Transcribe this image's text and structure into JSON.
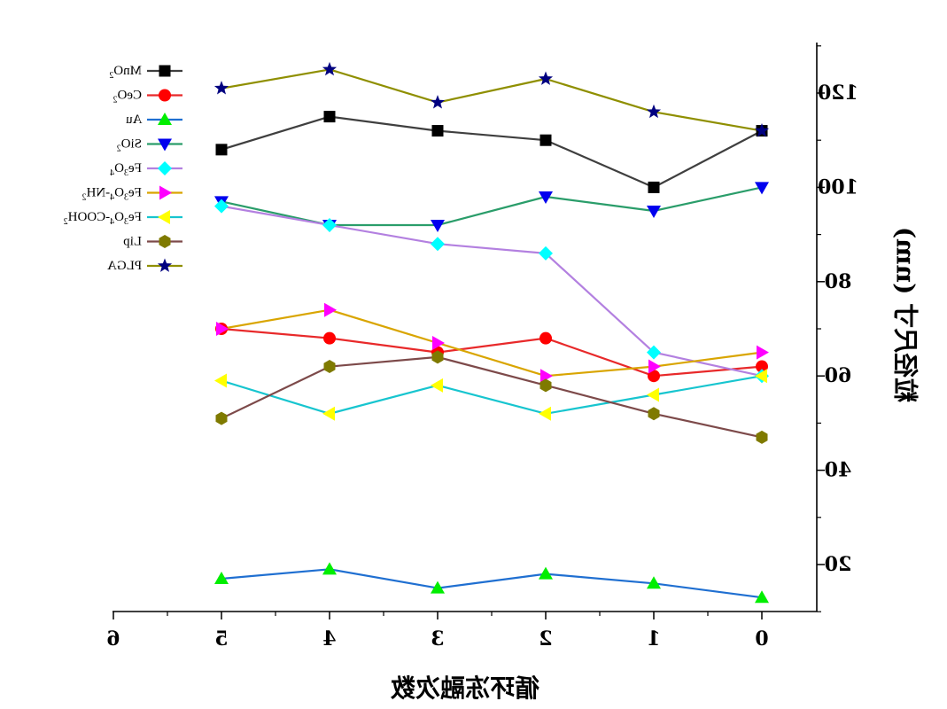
{
  "chart_data": {
    "type": "line",
    "xlabel": "循环冻融次数",
    "ylabel": "粒径尺寸 (nm)",
    "x": [
      0,
      1,
      2,
      3,
      4,
      5
    ],
    "xlim": [
      0,
      6
    ],
    "ylim": [
      10,
      130
    ],
    "x_ticks": [
      0,
      1,
      2,
      3,
      4,
      5,
      6
    ],
    "y_ticks": [
      20,
      40,
      60,
      80,
      100,
      120
    ],
    "x_reversed": true,
    "y_axis_side": "right",
    "mirrored_text": true,
    "grid": false,
    "legend_position": "top-left",
    "series": [
      {
        "name": "MnO2",
        "legend_parts": [
          [
            "MnO",
            ""
          ],
          [
            "2",
            "sub"
          ]
        ],
        "marker": "square",
        "line_color": "#3f3f3f",
        "marker_color": "#000000",
        "values": [
          112,
          100,
          110,
          112,
          115,
          108
        ]
      },
      {
        "name": "CeO2",
        "legend_parts": [
          [
            "CeO",
            ""
          ],
          [
            "2",
            "sub"
          ]
        ],
        "marker": "circle",
        "line_color": "#e8292a",
        "marker_color": "#ff0000",
        "values": [
          62,
          60,
          68,
          65,
          68,
          70
        ]
      },
      {
        "name": "Au",
        "legend_parts": [
          [
            "Au",
            ""
          ]
        ],
        "marker": "triangle-up",
        "line_color": "#1f6fd1",
        "marker_color": "#00ee00",
        "values": [
          13,
          16,
          18,
          15,
          19,
          17
        ]
      },
      {
        "name": "SiO2",
        "legend_parts": [
          [
            "SiO",
            ""
          ],
          [
            "2",
            "sub"
          ]
        ],
        "marker": "triangle-down",
        "line_color": "#2a9d6a",
        "marker_color": "#0000ee",
        "values": [
          100,
          95,
          98,
          92,
          92,
          97
        ]
      },
      {
        "name": "Fe3O4",
        "legend_parts": [
          [
            "Fe",
            ""
          ],
          [
            "3",
            "sub"
          ],
          [
            "O",
            ""
          ],
          [
            "4",
            "sub"
          ]
        ],
        "marker": "diamond",
        "line_color": "#b380e0",
        "marker_color": "#00ffff",
        "values": [
          60,
          65,
          86,
          88,
          92,
          96
        ]
      },
      {
        "name": "Fe3O4-NH2",
        "legend_parts": [
          [
            "Fe",
            ""
          ],
          [
            "3",
            "sub"
          ],
          [
            "O",
            ""
          ],
          [
            "4",
            "sub"
          ],
          [
            "-NH",
            ""
          ],
          [
            "2",
            "sub"
          ]
        ],
        "marker": "triangle-right",
        "line_color": "#d9a500",
        "marker_color": "#ff00ff",
        "values": [
          65,
          62,
          60,
          67,
          74,
          70
        ]
      },
      {
        "name": "Fe3O4-COOH2",
        "legend_parts": [
          [
            "Fe",
            ""
          ],
          [
            "3",
            "sub"
          ],
          [
            "O",
            ""
          ],
          [
            "4",
            "sub"
          ],
          [
            "-COOH",
            ""
          ],
          [
            "2",
            "sub"
          ]
        ],
        "marker": "triangle-left",
        "line_color": "#17c5cf",
        "marker_color": "#ffff00",
        "values": [
          60,
          56,
          52,
          58,
          52,
          59
        ]
      },
      {
        "name": "Lip",
        "legend_parts": [
          [
            "Lip",
            ""
          ]
        ],
        "marker": "hexagon",
        "line_color": "#7d4a4a",
        "marker_color": "#7f7a00",
        "values": [
          47,
          52,
          58,
          64,
          62,
          51
        ]
      },
      {
        "name": "PLGA",
        "legend_parts": [
          [
            "PLGA",
            ""
          ]
        ],
        "marker": "star",
        "line_color": "#8f8f00",
        "marker_color": "#000080",
        "values": [
          112,
          116,
          123,
          118,
          125,
          121
        ]
      }
    ]
  }
}
